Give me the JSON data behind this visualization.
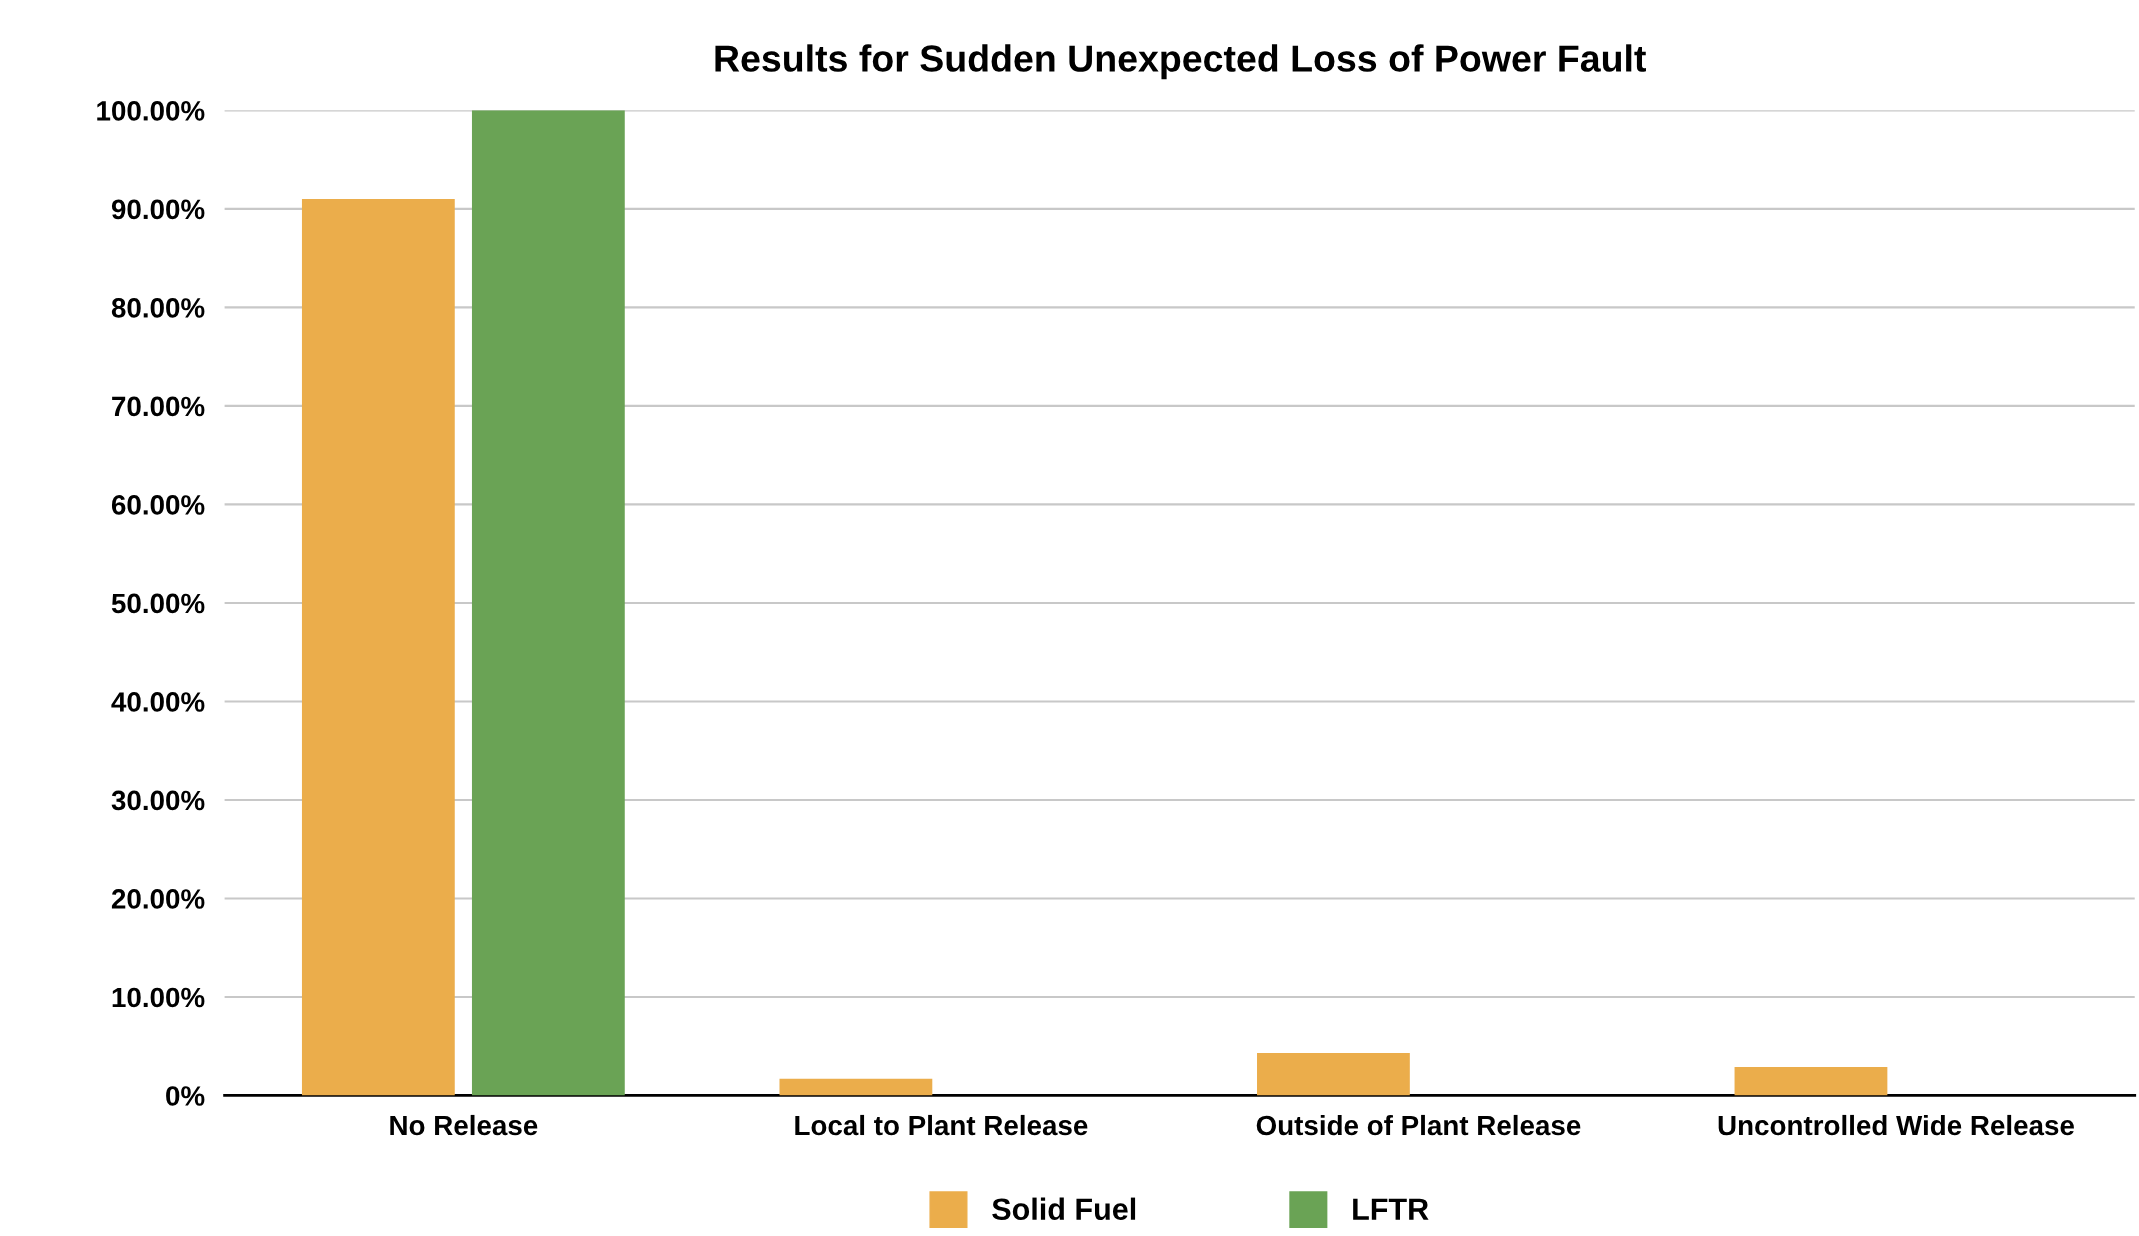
{
  "chart_data": {
    "type": "bar",
    "title": "Results for Sudden Unexpected Loss of Power Fault",
    "categories": [
      "No Release",
      "Local to Plant Release",
      "Outside of Plant Release",
      "Uncontrolled Wide Release"
    ],
    "series": [
      {
        "name": "Solid Fuel",
        "color": "#ebad4b",
        "values": [
          91.0,
          1.7,
          4.3,
          2.9
        ]
      },
      {
        "name": "LFTR",
        "color": "#6aa355",
        "values": [
          100,
          0,
          0,
          0
        ]
      }
    ],
    "ylim": [
      0,
      100
    ],
    "yticks": [
      {
        "value": 0,
        "label": "0%"
      },
      {
        "value": 10,
        "label": "10.00%"
      },
      {
        "value": 20,
        "label": "20.00%"
      },
      {
        "value": 30,
        "label": "30.00%"
      },
      {
        "value": 40,
        "label": "40.00%"
      },
      {
        "value": 50,
        "label": "50.00%"
      },
      {
        "value": 60,
        "label": "60.00%"
      },
      {
        "value": 70,
        "label": "70.00%"
      },
      {
        "value": 80,
        "label": "80.00%"
      },
      {
        "value": 90,
        "label": "90.00%"
      },
      {
        "value": 100,
        "label": "100.00%"
      }
    ],
    "grid": "y",
    "legend": "bottom"
  }
}
